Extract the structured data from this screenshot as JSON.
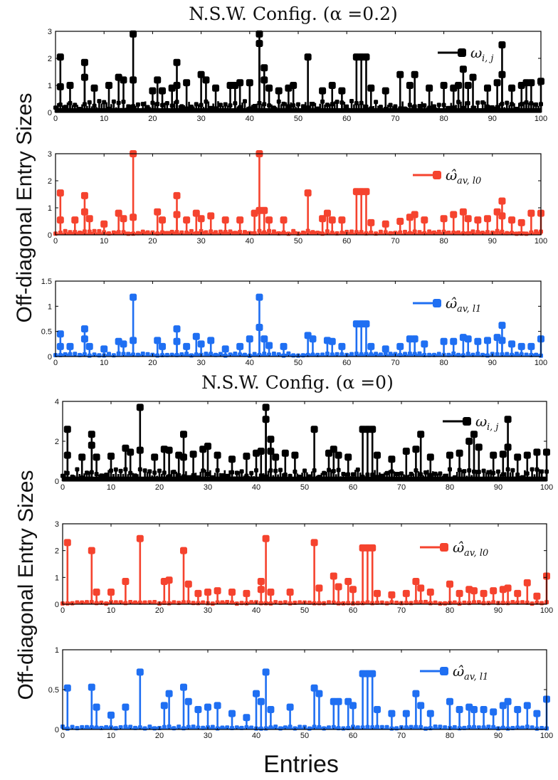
{
  "figure": {
    "xlabel": "Entries",
    "ylabels": [
      "Off-diagonal Entry Sizes",
      "Off-diagonal Entry Sizes"
    ],
    "titles": [
      "N.S.W. Config. (α =0.2)",
      "N.S.W. Config. (α =0)"
    ]
  },
  "colors": {
    "black": "#000000",
    "red": "#f5432e",
    "blue": "#1f6ff2"
  },
  "chart_data": [
    {
      "type": "stem",
      "group": 0,
      "title": "N.S.W. Config. (α =0.2)",
      "series_name": "ω",
      "series_sub": "i, j",
      "color": "#000000",
      "xlim": [
        0,
        100
      ],
      "ylim": [
        0,
        3
      ],
      "xticks": [
        0,
        10,
        20,
        30,
        40,
        50,
        60,
        70,
        80,
        90,
        100
      ],
      "yticks": [
        0,
        1,
        2,
        3
      ],
      "yticklabels": [
        "0",
        "1",
        "2",
        "3"
      ],
      "peaks": [
        [
          1,
          2.05
        ],
        [
          1,
          0.95
        ],
        [
          3,
          1.0
        ],
        [
          6,
          1.85
        ],
        [
          6,
          1.3
        ],
        [
          8,
          0.9
        ],
        [
          11,
          1.0
        ],
        [
          13,
          1.3
        ],
        [
          14,
          1.2
        ],
        [
          16,
          2.9
        ],
        [
          16,
          1.2
        ],
        [
          20,
          0.8
        ],
        [
          21,
          1.2
        ],
        [
          22,
          0.8
        ],
        [
          24,
          0.9
        ],
        [
          25,
          1.85
        ],
        [
          25,
          1.0
        ],
        [
          27,
          1.1
        ],
        [
          30,
          1.4
        ],
        [
          31,
          1.2
        ],
        [
          33,
          0.9
        ],
        [
          36,
          1.0
        ],
        [
          37,
          1.0
        ],
        [
          38,
          1.1
        ],
        [
          40,
          1.1
        ],
        [
          42,
          2.9
        ],
        [
          42,
          2.55
        ],
        [
          43,
          1.65
        ],
        [
          43,
          1.2
        ],
        [
          44,
          0.9
        ],
        [
          46,
          0.8
        ],
        [
          48,
          0.9
        ],
        [
          49,
          1.0
        ],
        [
          52,
          2.05
        ],
        [
          55,
          0.8
        ],
        [
          57,
          1.0
        ],
        [
          59,
          0.8
        ],
        [
          62,
          2.05
        ],
        [
          63,
          2.05
        ],
        [
          64,
          2.05
        ],
        [
          65,
          0.9
        ],
        [
          68,
          0.8
        ],
        [
          71,
          1.4
        ],
        [
          73,
          1.0
        ],
        [
          74,
          1.4
        ],
        [
          77,
          0.9
        ],
        [
          80,
          1.0
        ],
        [
          82,
          0.9
        ],
        [
          83,
          1.0
        ],
        [
          84,
          1.6
        ],
        [
          85,
          1.0
        ],
        [
          86,
          1.3
        ],
        [
          89,
          0.9
        ],
        [
          91,
          1.1
        ],
        [
          92,
          2.5
        ],
        [
          92,
          1.4
        ],
        [
          94,
          0.9
        ],
        [
          96,
          1.0
        ],
        [
          97,
          1.1
        ],
        [
          98,
          1.1
        ],
        [
          100,
          1.15
        ]
      ],
      "baseline": 0.35
    },
    {
      "type": "stem",
      "group": 0,
      "series_name": "ω̂",
      "series_sub": "av, l0",
      "color": "#f5432e",
      "xlim": [
        0,
        100
      ],
      "ylim": [
        0,
        3
      ],
      "xticks": [
        0,
        10,
        20,
        30,
        40,
        50,
        60,
        70,
        80,
        90,
        100
      ],
      "yticks": [
        0,
        1,
        2,
        3
      ],
      "yticklabels": [
        "0",
        "1",
        "2",
        "3"
      ],
      "peaks": [
        [
          1,
          1.55
        ],
        [
          1,
          0.55
        ],
        [
          4,
          0.55
        ],
        [
          6,
          1.45
        ],
        [
          6,
          0.85
        ],
        [
          7,
          0.6
        ],
        [
          10,
          0.4
        ],
        [
          13,
          0.8
        ],
        [
          14,
          0.6
        ],
        [
          16,
          3.0
        ],
        [
          16,
          0.65
        ],
        [
          21,
          0.85
        ],
        [
          22,
          0.55
        ],
        [
          25,
          1.45
        ],
        [
          25,
          0.75
        ],
        [
          27,
          0.55
        ],
        [
          29,
          0.8
        ],
        [
          30,
          0.6
        ],
        [
          32,
          0.7
        ],
        [
          35,
          0.55
        ],
        [
          38,
          0.55
        ],
        [
          41,
          0.8
        ],
        [
          42,
          3.0
        ],
        [
          42,
          0.9
        ],
        [
          43,
          0.9
        ],
        [
          44,
          0.55
        ],
        [
          47,
          0.55
        ],
        [
          52,
          1.55
        ],
        [
          55,
          0.6
        ],
        [
          56,
          0.8
        ],
        [
          57,
          0.55
        ],
        [
          59,
          0.55
        ],
        [
          62,
          1.6
        ],
        [
          63,
          1.6
        ],
        [
          64,
          1.6
        ],
        [
          65,
          0.45
        ],
        [
          68,
          0.4
        ],
        [
          71,
          0.5
        ],
        [
          73,
          0.65
        ],
        [
          74,
          0.75
        ],
        [
          76,
          0.55
        ],
        [
          80,
          0.6
        ],
        [
          82,
          0.75
        ],
        [
          84,
          0.85
        ],
        [
          85,
          0.6
        ],
        [
          87,
          0.55
        ],
        [
          89,
          0.6
        ],
        [
          91,
          0.85
        ],
        [
          92,
          1.25
        ],
        [
          92,
          0.7
        ],
        [
          94,
          0.55
        ],
        [
          96,
          0.45
        ],
        [
          98,
          0.8
        ],
        [
          100,
          0.8
        ]
      ],
      "baseline": 0.12
    },
    {
      "type": "stem",
      "group": 0,
      "series_name": "ω̂",
      "series_sub": "av, l1",
      "color": "#1f6ff2",
      "xlim": [
        0,
        100
      ],
      "ylim": [
        0,
        1.5
      ],
      "xticks": [
        0,
        10,
        20,
        30,
        40,
        50,
        60,
        70,
        80,
        90,
        100
      ],
      "yticks": [
        0,
        0.5,
        1,
        1.5
      ],
      "yticklabels": [
        "0",
        "0.5",
        "1",
        "1.5"
      ],
      "peaks": [
        [
          1,
          0.45
        ],
        [
          1,
          0.2
        ],
        [
          3,
          0.2
        ],
        [
          6,
          0.55
        ],
        [
          6,
          0.35
        ],
        [
          7,
          0.2
        ],
        [
          10,
          0.15
        ],
        [
          13,
          0.3
        ],
        [
          14,
          0.25
        ],
        [
          16,
          1.18
        ],
        [
          16,
          0.32
        ],
        [
          21,
          0.32
        ],
        [
          22,
          0.2
        ],
        [
          25,
          0.55
        ],
        [
          25,
          0.3
        ],
        [
          27,
          0.2
        ],
        [
          29,
          0.4
        ],
        [
          30,
          0.25
        ],
        [
          32,
          0.32
        ],
        [
          35,
          0.15
        ],
        [
          38,
          0.2
        ],
        [
          40,
          0.35
        ],
        [
          42,
          1.18
        ],
        [
          42,
          0.58
        ],
        [
          43,
          0.35
        ],
        [
          44,
          0.22
        ],
        [
          47,
          0.2
        ],
        [
          52,
          0.42
        ],
        [
          53,
          0.35
        ],
        [
          56,
          0.32
        ],
        [
          57,
          0.3
        ],
        [
          59,
          0.2
        ],
        [
          62,
          0.65
        ],
        [
          63,
          0.65
        ],
        [
          64,
          0.65
        ],
        [
          65,
          0.2
        ],
        [
          68,
          0.15
        ],
        [
          71,
          0.2
        ],
        [
          73,
          0.35
        ],
        [
          74,
          0.35
        ],
        [
          76,
          0.25
        ],
        [
          80,
          0.3
        ],
        [
          82,
          0.3
        ],
        [
          84,
          0.38
        ],
        [
          85,
          0.35
        ],
        [
          87,
          0.3
        ],
        [
          89,
          0.32
        ],
        [
          91,
          0.38
        ],
        [
          92,
          0.62
        ],
        [
          92,
          0.32
        ],
        [
          94,
          0.25
        ],
        [
          96,
          0.2
        ],
        [
          98,
          0.2
        ],
        [
          100,
          0.35
        ]
      ],
      "baseline": 0.05
    },
    {
      "type": "stem",
      "group": 1,
      "title": "N.S.W. Config. (α =0)",
      "series_name": "ω",
      "series_sub": "i, j",
      "color": "#000000",
      "xlim": [
        0,
        100
      ],
      "ylim": [
        0,
        4
      ],
      "xticks": [
        0,
        10,
        20,
        30,
        40,
        50,
        60,
        70,
        80,
        90,
        100
      ],
      "yticks": [
        0,
        2,
        4
      ],
      "yticklabels": [
        "0",
        "2",
        "4"
      ],
      "peaks": [
        [
          1,
          2.6
        ],
        [
          1,
          1.3
        ],
        [
          4,
          1.2
        ],
        [
          6,
          2.35
        ],
        [
          6,
          1.8
        ],
        [
          7,
          1.2
        ],
        [
          10,
          1.25
        ],
        [
          13,
          1.65
        ],
        [
          14,
          1.45
        ],
        [
          16,
          3.7
        ],
        [
          16,
          1.55
        ],
        [
          19,
          1.2
        ],
        [
          21,
          1.6
        ],
        [
          22,
          1.55
        ],
        [
          24,
          1.3
        ],
        [
          25,
          2.35
        ],
        [
          25,
          1.2
        ],
        [
          27,
          1.35
        ],
        [
          29,
          1.6
        ],
        [
          30,
          1.75
        ],
        [
          32,
          1.3
        ],
        [
          35,
          1.1
        ],
        [
          38,
          1.25
        ],
        [
          40,
          1.4
        ],
        [
          41,
          1.5
        ],
        [
          42,
          3.7
        ],
        [
          42,
          3.1
        ],
        [
          43,
          2.1
        ],
        [
          43,
          1.5
        ],
        [
          44,
          1.2
        ],
        [
          46,
          1.4
        ],
        [
          48,
          1.3
        ],
        [
          52,
          2.6
        ],
        [
          55,
          1.4
        ],
        [
          56,
          1.6
        ],
        [
          57,
          1.3
        ],
        [
          59,
          1.2
        ],
        [
          62,
          2.6
        ],
        [
          63,
          2.6
        ],
        [
          64,
          2.6
        ],
        [
          65,
          1.3
        ],
        [
          68,
          1.1
        ],
        [
          71,
          1.5
        ],
        [
          73,
          1.6
        ],
        [
          74,
          2.35
        ],
        [
          76,
          1.2
        ],
        [
          80,
          1.3
        ],
        [
          82,
          1.4
        ],
        [
          84,
          2.0
        ],
        [
          85,
          2.35
        ],
        [
          86,
          1.7
        ],
        [
          89,
          1.3
        ],
        [
          91,
          1.35
        ],
        [
          92,
          3.1
        ],
        [
          92,
          1.7
        ],
        [
          94,
          1.2
        ],
        [
          96,
          1.3
        ],
        [
          98,
          1.45
        ],
        [
          100,
          1.45
        ]
      ],
      "baseline": 0.5
    },
    {
      "type": "stem",
      "group": 1,
      "series_name": "ω̂",
      "series_sub": "av, l0",
      "color": "#f5432e",
      "xlim": [
        0,
        100
      ],
      "ylim": [
        0,
        3
      ],
      "xticks": [
        0,
        10,
        20,
        30,
        40,
        50,
        60,
        70,
        80,
        90,
        100
      ],
      "yticks": [
        0,
        1,
        2,
        3
      ],
      "yticklabels": [
        "0",
        "1",
        "2",
        "3"
      ],
      "peaks": [
        [
          1,
          2.3
        ],
        [
          6,
          2.0
        ],
        [
          7,
          0.45
        ],
        [
          10,
          0.45
        ],
        [
          13,
          0.85
        ],
        [
          16,
          2.45
        ],
        [
          21,
          0.85
        ],
        [
          22,
          0.9
        ],
        [
          25,
          2.0
        ],
        [
          26,
          0.75
        ],
        [
          28,
          0.4
        ],
        [
          30,
          0.45
        ],
        [
          32,
          0.5
        ],
        [
          35,
          0.45
        ],
        [
          38,
          0.4
        ],
        [
          41,
          0.85
        ],
        [
          41,
          0.55
        ],
        [
          42,
          2.45
        ],
        [
          43,
          0.45
        ],
        [
          47,
          0.45
        ],
        [
          52,
          2.3
        ],
        [
          53,
          0.6
        ],
        [
          56,
          1.05
        ],
        [
          57,
          0.65
        ],
        [
          59,
          0.85
        ],
        [
          60,
          0.55
        ],
        [
          62,
          2.1
        ],
        [
          63,
          2.1
        ],
        [
          64,
          2.1
        ],
        [
          65,
          0.4
        ],
        [
          68,
          0.35
        ],
        [
          71,
          0.4
        ],
        [
          73,
          0.85
        ],
        [
          74,
          0.6
        ],
        [
          76,
          0.45
        ],
        [
          80,
          0.75
        ],
        [
          82,
          0.4
        ],
        [
          84,
          0.55
        ],
        [
          85,
          0.5
        ],
        [
          87,
          0.4
        ],
        [
          89,
          0.5
        ],
        [
          91,
          0.55
        ],
        [
          92,
          0.6
        ],
        [
          94,
          0.4
        ],
        [
          96,
          0.8
        ],
        [
          98,
          0.3
        ],
        [
          100,
          1.05
        ]
      ],
      "baseline": 0.07
    },
    {
      "type": "stem",
      "group": 1,
      "series_name": "ω̂",
      "series_sub": "av, l1",
      "color": "#1f6ff2",
      "xlim": [
        0,
        100
      ],
      "ylim": [
        0,
        1
      ],
      "xticks": [
        0,
        10,
        20,
        30,
        40,
        50,
        60,
        70,
        80,
        90,
        100
      ],
      "yticks": [
        0,
        0.5,
        1
      ],
      "yticklabels": [
        "0",
        "0.5",
        "1"
      ],
      "peaks": [
        [
          1,
          0.52
        ],
        [
          6,
          0.53
        ],
        [
          7,
          0.28
        ],
        [
          10,
          0.18
        ],
        [
          13,
          0.28
        ],
        [
          16,
          0.72
        ],
        [
          21,
          0.3
        ],
        [
          22,
          0.45
        ],
        [
          25,
          0.53
        ],
        [
          26,
          0.35
        ],
        [
          28,
          0.25
        ],
        [
          30,
          0.28
        ],
        [
          32,
          0.3
        ],
        [
          35,
          0.2
        ],
        [
          38,
          0.15
        ],
        [
          40,
          0.45
        ],
        [
          41,
          0.35
        ],
        [
          42,
          0.72
        ],
        [
          43,
          0.25
        ],
        [
          47,
          0.28
        ],
        [
          52,
          0.52
        ],
        [
          53,
          0.45
        ],
        [
          56,
          0.35
        ],
        [
          57,
          0.35
        ],
        [
          59,
          0.35
        ],
        [
          60,
          0.3
        ],
        [
          62,
          0.7
        ],
        [
          63,
          0.7
        ],
        [
          64,
          0.7
        ],
        [
          65,
          0.25
        ],
        [
          68,
          0.2
        ],
        [
          71,
          0.2
        ],
        [
          73,
          0.45
        ],
        [
          74,
          0.3
        ],
        [
          76,
          0.2
        ],
        [
          80,
          0.35
        ],
        [
          82,
          0.25
        ],
        [
          84,
          0.28
        ],
        [
          85,
          0.25
        ],
        [
          87,
          0.25
        ],
        [
          89,
          0.22
        ],
        [
          91,
          0.3
        ],
        [
          92,
          0.35
        ],
        [
          94,
          0.25
        ],
        [
          96,
          0.3
        ],
        [
          98,
          0.2
        ],
        [
          100,
          0.38
        ]
      ],
      "baseline": 0.03
    }
  ]
}
